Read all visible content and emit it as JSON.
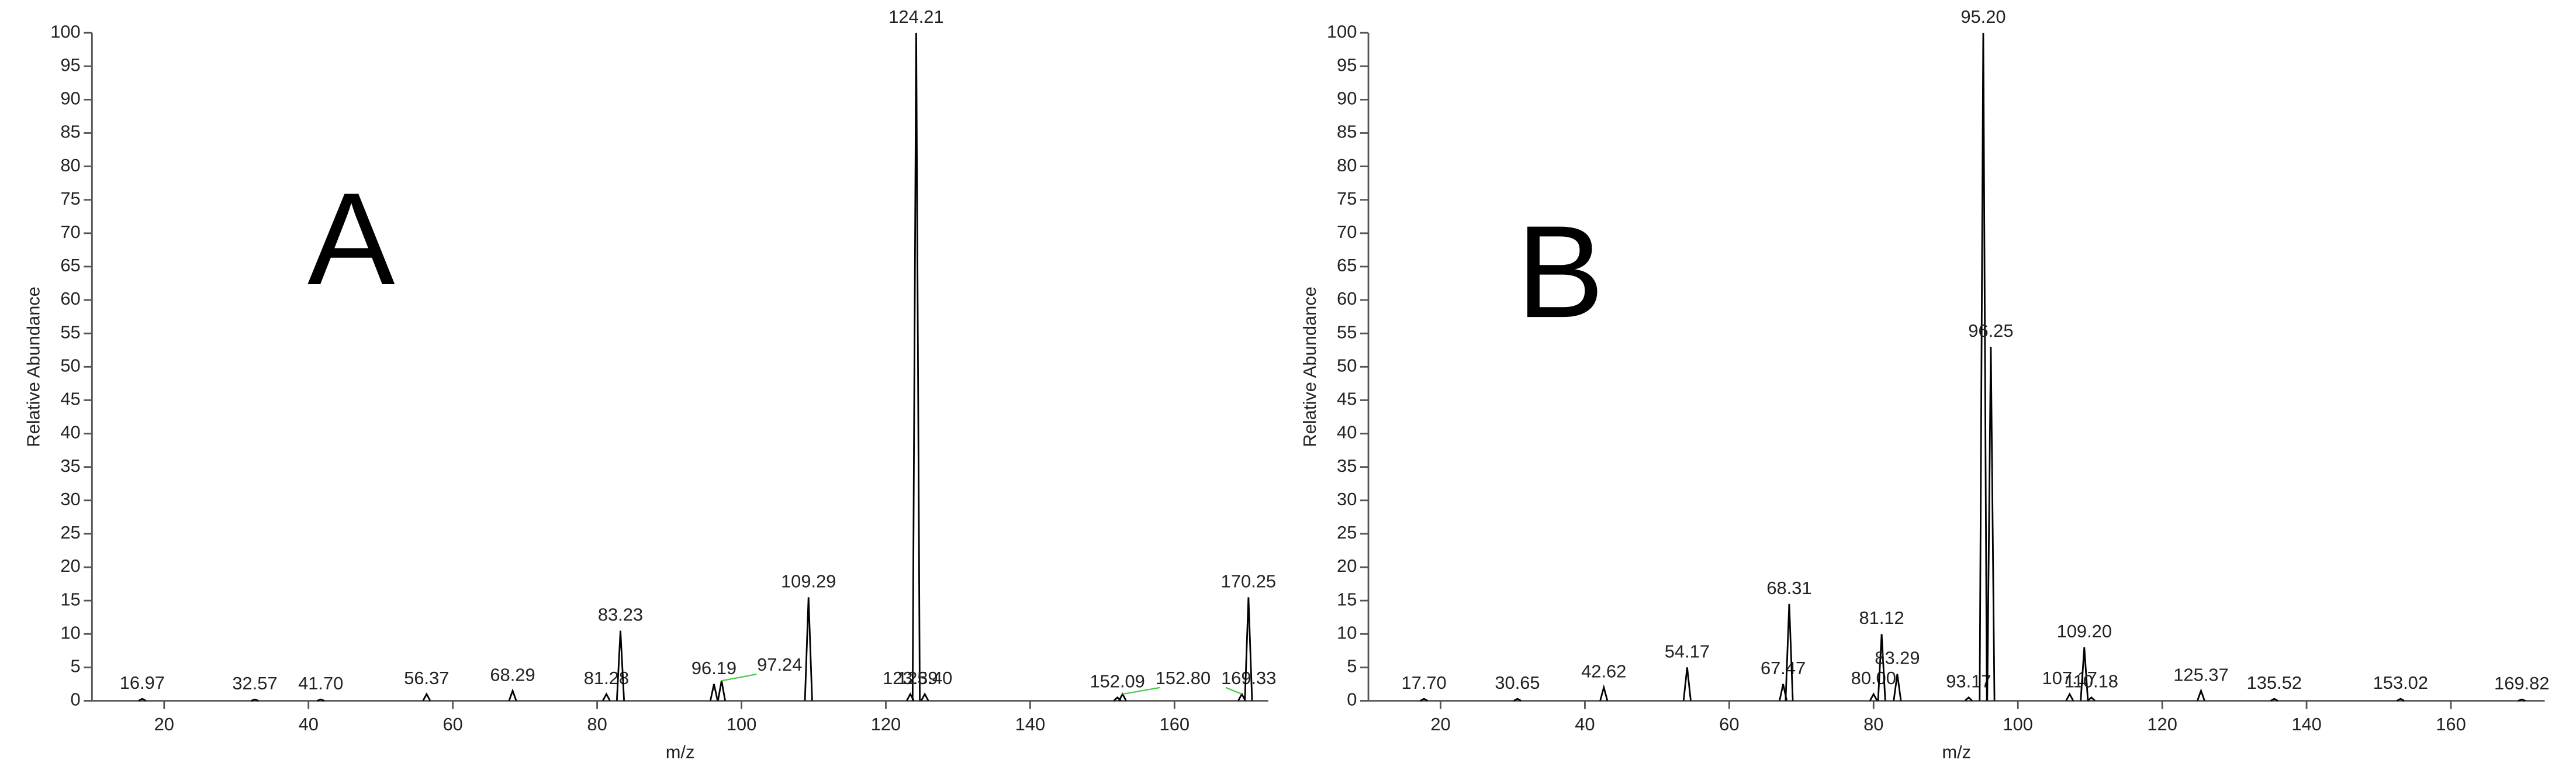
{
  "chart_data": [
    {
      "type": "spectrum",
      "annotation": "A",
      "xlabel": "m/z",
      "ylabel": "Relative Abundance",
      "xlim": [
        10,
        173
      ],
      "ylim": [
        0,
        100
      ],
      "xticks": [
        20,
        40,
        60,
        80,
        100,
        120,
        140,
        160
      ],
      "yticks": [
        0,
        5,
        10,
        15,
        20,
        25,
        30,
        35,
        40,
        45,
        50,
        55,
        60,
        65,
        70,
        75,
        80,
        85,
        90,
        95,
        100
      ],
      "color": "#000000",
      "x": [
        16.97,
        32.57,
        41.7,
        56.37,
        68.29,
        81.28,
        83.23,
        96.19,
        97.24,
        109.29,
        123.39,
        124.21,
        125.4,
        152.09,
        152.8,
        169.33,
        170.25
      ],
      "x_labels": [
        "16.97",
        "32.57",
        "41.70",
        "56.37",
        "68.29",
        "81.28",
        "83.23",
        "96.19",
        "97.24",
        "109.29",
        "123.39",
        "124.21",
        "125.40",
        "152.09",
        "152.80",
        "169.33",
        "170.25"
      ],
      "values": [
        0.3,
        0.2,
        0.2,
        1,
        1.5,
        1,
        10.5,
        2.5,
        3,
        15.5,
        1,
        100,
        1,
        0.5,
        1,
        1,
        15.5
      ]
    },
    {
      "type": "spectrum",
      "annotation": "B",
      "xlabel": "m/z",
      "ylabel": "Relative Abundance",
      "xlim": [
        10,
        173
      ],
      "ylim": [
        0,
        100
      ],
      "xticks": [
        20,
        40,
        60,
        80,
        100,
        120,
        140,
        160
      ],
      "yticks": [
        0,
        5,
        10,
        15,
        20,
        25,
        30,
        35,
        40,
        45,
        50,
        55,
        60,
        65,
        70,
        75,
        80,
        85,
        90,
        95,
        100
      ],
      "color": "#000000",
      "x": [
        17.7,
        30.65,
        42.62,
        54.17,
        67.47,
        68.31,
        80.0,
        81.12,
        83.29,
        93.17,
        95.2,
        96.25,
        107.17,
        109.2,
        110.18,
        125.37,
        135.52,
        153.02,
        169.82
      ],
      "x_labels": [
        "17.70",
        "30.65",
        "42.62",
        "54.17",
        "67.47",
        "68.31",
        "80.00",
        "81.12",
        "83.29",
        "93.17",
        "95.20",
        "96.25",
        "107.17",
        "109.20",
        "110.18",
        "125.37",
        "135.52",
        "153.02",
        "169.82"
      ],
      "values": [
        0.3,
        0.3,
        2,
        5,
        2.5,
        14.5,
        1,
        10,
        4,
        0.5,
        100,
        53,
        1,
        8,
        0.5,
        1.5,
        0.3,
        0.3,
        0.2
      ]
    }
  ]
}
